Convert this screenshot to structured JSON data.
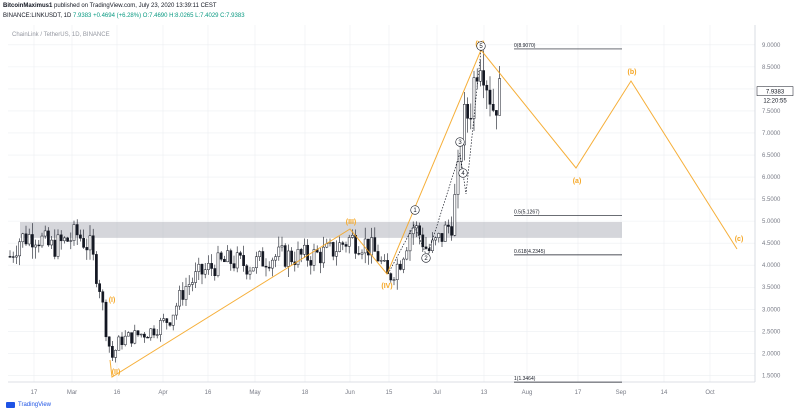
{
  "header": {
    "author": "BitcoinMaximus1",
    "published_text": "published on TradingView.com, July 23, 2020 13:39:11 CEST",
    "symbol_line_prefix": "BINANCE:LINKUSDT, 1D",
    "last_price": "7.9383",
    "change": "+0.4694 (+6.28%)",
    "ohlc": "O:7.4690 H:8.0265 L:7.4029 C:7.9383"
  },
  "chart_data": {
    "type": "candlestick",
    "title": "ChainLink / TetherUS, 1D, BINANCE",
    "x_ticks": [
      "17",
      "Mar",
      "16",
      "Apr",
      "16",
      "May",
      "18",
      "Jun",
      "15",
      "Jul",
      "13",
      "Aug",
      "17",
      "Sep",
      "14",
      "Oct"
    ],
    "y_ticks": [
      "9.0000",
      "8.5000",
      "8.0000",
      "7.5000",
      "7.0000",
      "6.5000",
      "6.0000",
      "5.5000",
      "5.0000",
      "4.5000",
      "4.0000",
      "3.5000",
      "3.0000",
      "2.5000",
      "2.0000",
      "1.5000"
    ],
    "ylim": [
      1.35,
      9.45
    ],
    "price_label": "7.9383",
    "countdown_label": "12:20:55",
    "fib_levels": [
      {
        "label": "0(8.9070)",
        "value": 8.907
      },
      {
        "label": "0.5(5.1267)",
        "value": 5.1267
      },
      {
        "label": "0.618(4.2345)",
        "value": 4.2345
      },
      {
        "label": "1(1.3464)",
        "value": 1.3464
      }
    ],
    "resistance_zone": [
      4.62,
      4.98
    ],
    "wave_labels": [
      "(I)",
      "(II)",
      "(III)",
      "(IV)",
      "(V)",
      "(a)",
      "(b)",
      "(c)",
      "1",
      "2",
      "3",
      "4",
      "5"
    ],
    "colors": {
      "up": "#ffffff",
      "down": "#131722",
      "wave": "#f5a623",
      "zone": "#b2b5be",
      "grid": "#eceff2"
    }
  },
  "footer": {
    "brand": "TradingView"
  }
}
